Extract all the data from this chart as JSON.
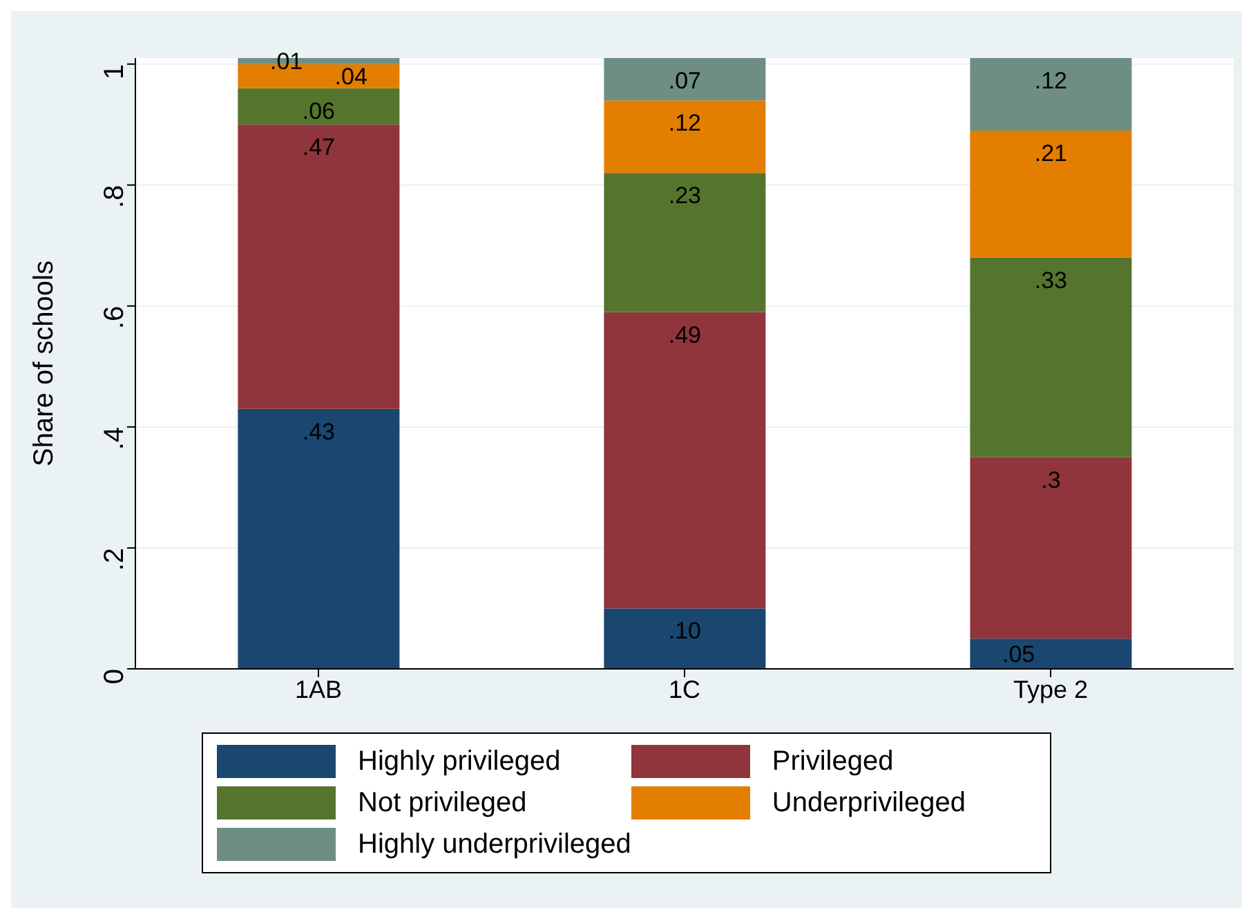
{
  "chart_data": {
    "type": "bar",
    "stacked": true,
    "ylabel": "Share of schools",
    "categories": [
      "1AB",
      "1C",
      "Type 2"
    ],
    "series": [
      {
        "name": "Highly privileged",
        "color": "#1a476f",
        "values": [
          0.43,
          0.1,
          0.05
        ],
        "value_labels": [
          ".43",
          ".10",
          ".05"
        ]
      },
      {
        "name": "Privileged",
        "color": "#90353b",
        "values": [
          0.47,
          0.49,
          0.3
        ],
        "value_labels": [
          ".47",
          ".49",
          ".3"
        ]
      },
      {
        "name": "Not privileged",
        "color": "#55752f",
        "values": [
          0.06,
          0.23,
          0.33
        ],
        "value_labels": [
          ".06",
          ".23",
          ".33"
        ]
      },
      {
        "name": "Underprivileged",
        "color": "#e37e00",
        "values": [
          0.04,
          0.12,
          0.21
        ],
        "value_labels": [
          ".04",
          ".12",
          ".21"
        ]
      },
      {
        "name": "Highly underprivileged",
        "color": "#6e8e84",
        "values": [
          0.01,
          0.07,
          0.12
        ],
        "value_labels": [
          ".01",
          ".07",
          ".12"
        ]
      }
    ],
    "ylim": [
      0,
      1.01
    ],
    "yticks": [
      {
        "value": 0,
        "label": "0"
      },
      {
        "value": 0.2,
        "label": ".2"
      },
      {
        "value": 0.4,
        "label": ".4"
      },
      {
        "value": 0.6,
        "label": ".6"
      },
      {
        "value": 0.8,
        "label": ".8"
      },
      {
        "value": 1,
        "label": "1"
      }
    ],
    "grid": "y",
    "legend": "bottom"
  }
}
